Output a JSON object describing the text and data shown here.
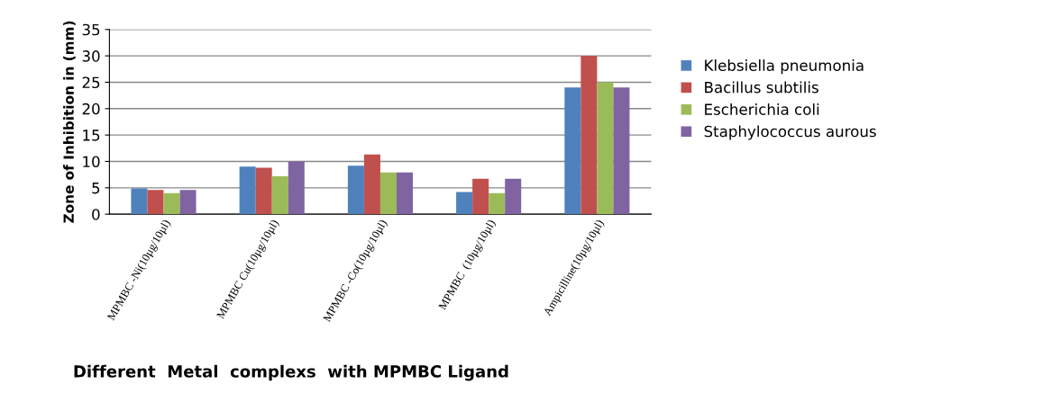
{
  "chart_data": {
    "type": "bar",
    "xlabel": "Different  Metal  complexs  with MPMBC Ligand",
    "ylabel": "Zone of Inhibition in (mm)",
    "categories": [
      "MPMBC -Ni(10µg/10µl)",
      "MPMBC Cu(10µg/10µl)",
      "MPMBC -Co(10µg/10µl)",
      "MPMBC  (10µg/10µl)",
      "Ampicilline(10µg/10µl)"
    ],
    "series": [
      {
        "name": "Klebsiella pneumonia",
        "color": "#4f81bd",
        "values": [
          4.9,
          9.0,
          9.2,
          4.2,
          24
        ]
      },
      {
        "name": "Bacillus subtilis",
        "color": "#c0504d",
        "values": [
          4.6,
          8.8,
          11.3,
          6.7,
          30
        ]
      },
      {
        "name": "Escherichia coli",
        "color": "#9bbb59",
        "values": [
          4.0,
          7.2,
          7.9,
          4.0,
          25
        ]
      },
      {
        "name": "Staphylococcus aurous",
        "color": "#8064a2",
        "values": [
          4.6,
          10.0,
          7.9,
          6.7,
          24
        ]
      }
    ],
    "ylim": [
      0,
      35
    ],
    "yticks": [
      0,
      5,
      10,
      15,
      20,
      25,
      30,
      35
    ],
    "grid": "y",
    "legend": "right"
  }
}
